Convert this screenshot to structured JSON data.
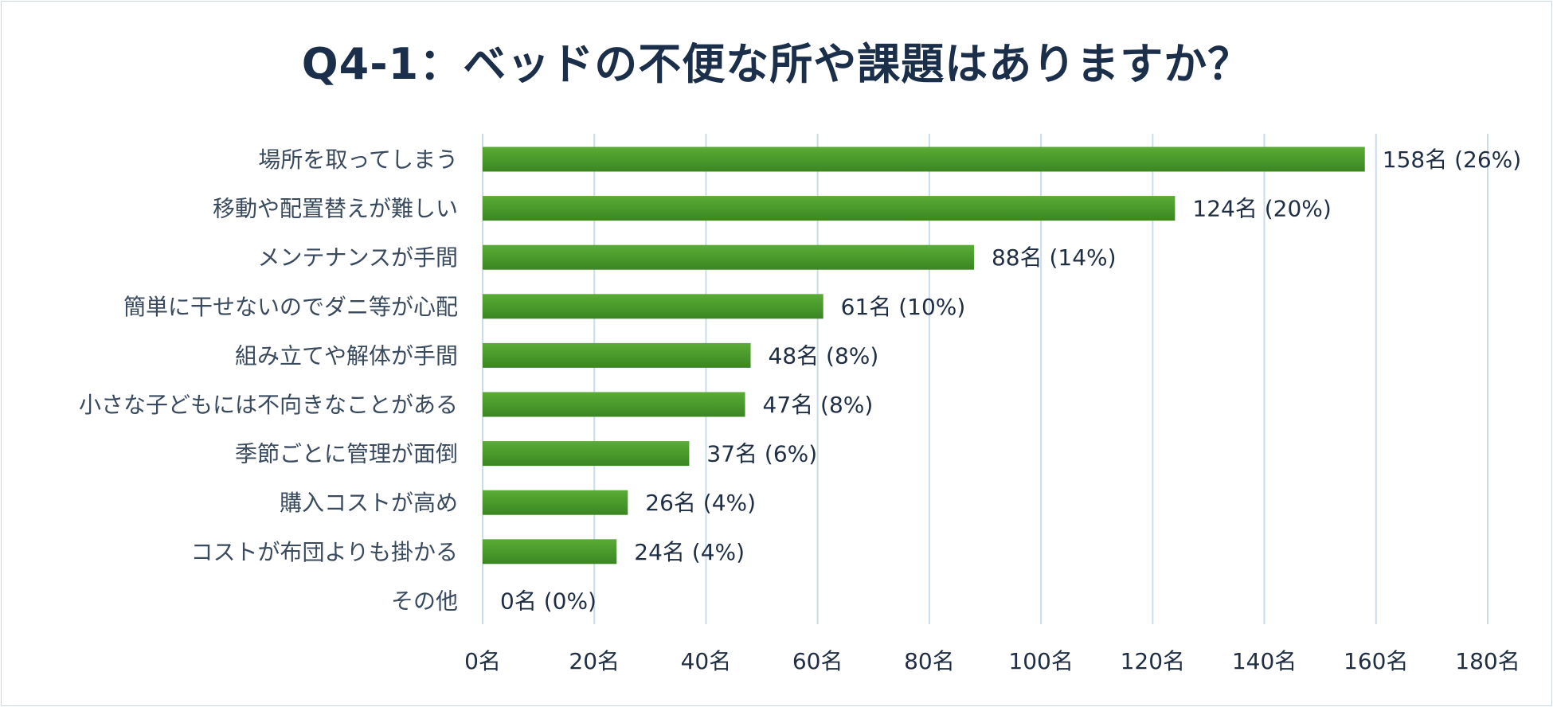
{
  "chart_data": {
    "type": "bar",
    "orientation": "horizontal",
    "title": "Q4-1：ベッドの不便な所や課題はありますか？",
    "categories": [
      "場所を取ってしまう",
      "移動や配置替えが難しい",
      "メンテナンスが手間",
      "簡単に干せないのでダニ等が心配",
      "組み立てや解体が手間",
      "小さな子どもには不向きなことがある",
      "季節ごとに管理が面倒",
      "購入コストが高め",
      "コストが布団よりも掛かる",
      "その他"
    ],
    "values": [
      158,
      124,
      88,
      61,
      48,
      47,
      37,
      26,
      24,
      0
    ],
    "data_labels": [
      "158名 (26%)",
      "124名 (20%)",
      "88名 (14%)",
      "61名 (10%)",
      "48名 (8%)",
      "47名 (8%)",
      "37名 (6%)",
      "26名 (4%)",
      "24名 (4%)",
      "0名 (0%)"
    ],
    "xlim": [
      0,
      180
    ],
    "xticks": [
      0,
      20,
      40,
      60,
      80,
      100,
      120,
      140,
      160,
      180
    ],
    "tick_labels": [
      "0名",
      "20名",
      "40名",
      "60名",
      "80名",
      "100名",
      "120名",
      "140名",
      "160名",
      "180名"
    ],
    "grid": true,
    "legend": "none",
    "bar_color": "#4a9a2c",
    "grid_color": "#c8dcee"
  }
}
